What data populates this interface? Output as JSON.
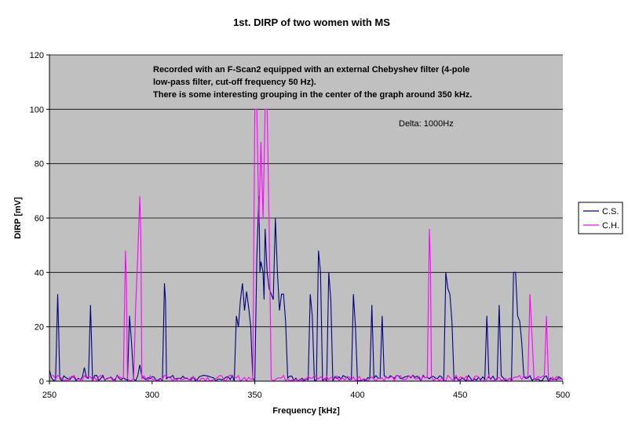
{
  "chart_data": {
    "type": "line",
    "title": "1st. DIRP of two women with MS",
    "xlabel": "Frequency [kHz]",
    "ylabel": "DIRP [mV]",
    "xlim": [
      250,
      500
    ],
    "ylim": [
      0,
      120
    ],
    "x_ticks": [
      "250",
      "300",
      "350",
      "400",
      "450",
      "500"
    ],
    "y_ticks": [
      "0",
      "20",
      "40",
      "60",
      "80",
      "100",
      "120"
    ],
    "grid": "horizontal",
    "plot_background": "#c0c0c0",
    "legend_position": "right",
    "annotation_lines": [
      "Recorded with an F-Scan2 equipped with an external Chebyshev filter (4-pole",
      "low-pass filter, cut-off frequency 50 Hz).",
      "There is some interesting grouping in the center of the graph around 350 kHz."
    ],
    "delta_label": "Delta: 1000Hz",
    "step": 1,
    "series": [
      {
        "name": "C.S.",
        "color": "#000080",
        "peaks": [
          [
            250,
            4
          ],
          [
            254,
            32
          ],
          [
            254.5,
            18
          ],
          [
            267,
            5
          ],
          [
            270,
            28
          ],
          [
            270.5,
            15
          ],
          [
            289,
            24
          ],
          [
            290,
            14
          ],
          [
            294,
            6
          ],
          [
            306,
            36
          ],
          [
            306.5,
            30
          ],
          [
            341,
            24
          ],
          [
            342,
            20
          ],
          [
            343,
            30
          ],
          [
            344,
            36
          ],
          [
            345,
            26
          ],
          [
            346,
            33
          ],
          [
            347,
            27
          ],
          [
            348,
            20
          ],
          [
            351,
            46
          ],
          [
            352,
            68
          ],
          [
            352.5,
            40
          ],
          [
            353,
            44
          ],
          [
            354,
            40
          ],
          [
            354.5,
            30
          ],
          [
            355,
            56
          ],
          [
            356,
            40
          ],
          [
            357,
            34
          ],
          [
            358,
            32
          ],
          [
            359,
            30
          ],
          [
            360,
            60
          ],
          [
            361,
            40
          ],
          [
            362,
            26
          ],
          [
            363,
            32
          ],
          [
            364,
            32
          ],
          [
            365,
            22
          ],
          [
            377,
            32
          ],
          [
            378,
            24
          ],
          [
            381,
            48
          ],
          [
            382,
            40
          ],
          [
            386,
            40
          ],
          [
            387,
            30
          ],
          [
            398,
            32
          ],
          [
            399,
            20
          ],
          [
            407,
            28
          ],
          [
            412,
            24
          ],
          [
            443,
            40
          ],
          [
            444,
            34
          ],
          [
            445,
            32
          ],
          [
            446,
            22
          ],
          [
            463,
            24
          ],
          [
            469,
            28
          ],
          [
            476,
            40
          ],
          [
            477,
            40
          ],
          [
            478,
            24
          ],
          [
            479,
            22
          ],
          [
            480,
            14
          ]
        ]
      },
      {
        "name": "C.H.",
        "color": "#ff00ff",
        "peaks": [
          [
            287,
            48
          ],
          [
            287.5,
            36
          ],
          [
            292,
            28
          ],
          [
            293,
            46
          ],
          [
            294,
            68
          ],
          [
            294.5,
            54
          ],
          [
            350,
            100
          ],
          [
            351,
            100
          ],
          [
            352,
            58
          ],
          [
            353,
            88
          ],
          [
            354,
            60
          ],
          [
            355,
            100
          ],
          [
            356,
            100
          ],
          [
            357,
            56
          ],
          [
            435,
            56
          ],
          [
            435.5,
            44
          ],
          [
            484,
            32
          ],
          [
            485,
            16
          ],
          [
            492,
            24
          ]
        ]
      }
    ]
  }
}
